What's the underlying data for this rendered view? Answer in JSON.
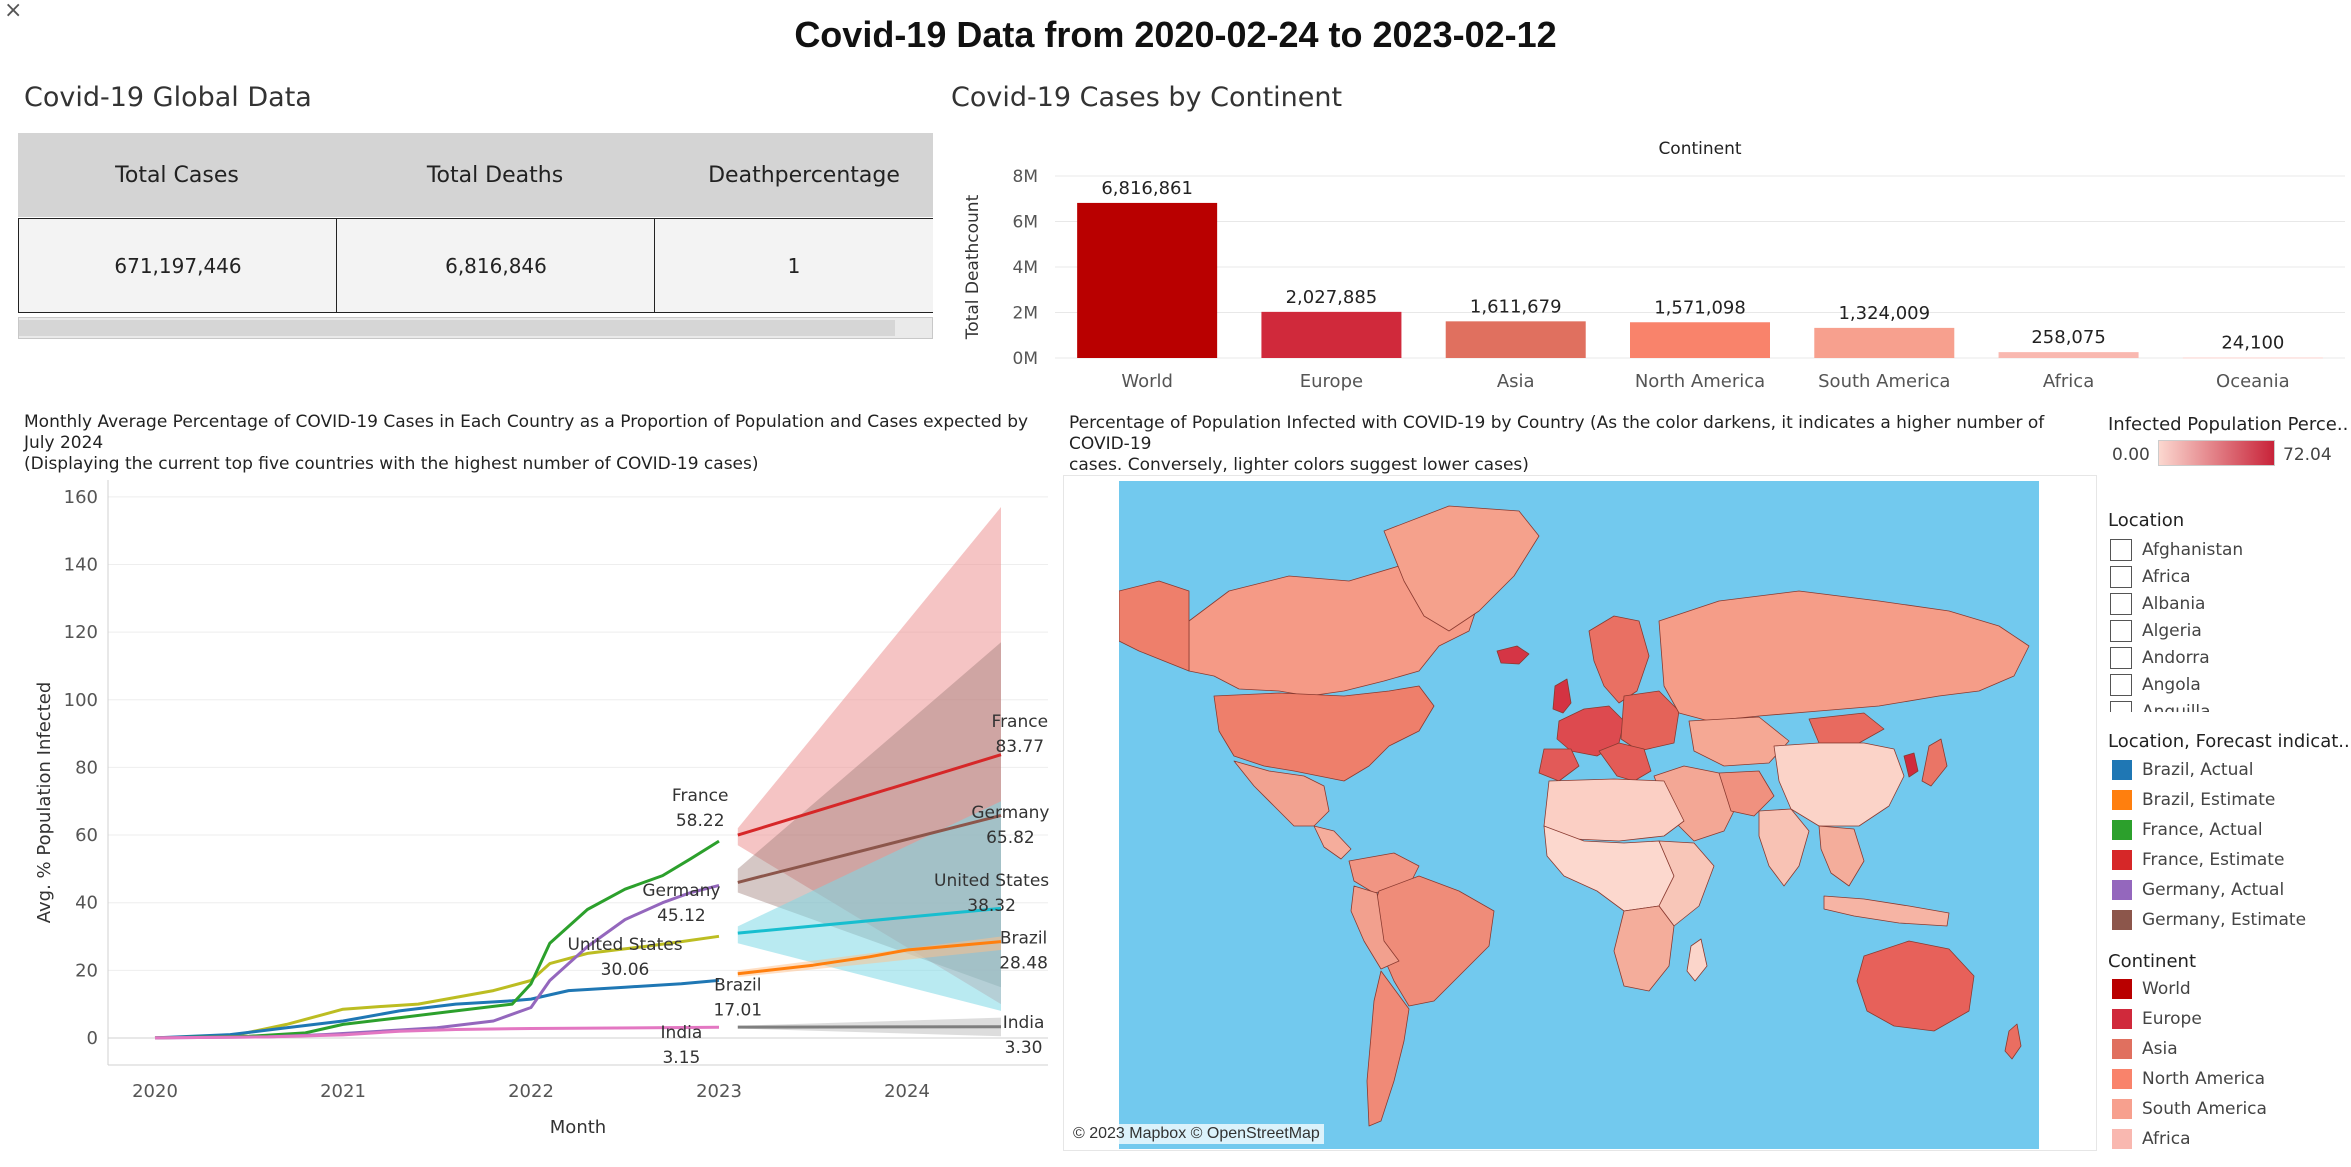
{
  "dashboard_title": "Covid-19 Data from 2020-02-24 to 2023-02-12",
  "close_glyph": "×",
  "global": {
    "title": "Covid-19 Global Data",
    "headers": [
      "Total Cases",
      "Total Deaths",
      "Deathpercentage"
    ],
    "values": [
      "671,197,446",
      "6,816,846",
      "1"
    ]
  },
  "continent_chart": {
    "section_title": "Covid-19 Cases by Continent",
    "chart_data": {
      "type": "bar",
      "title": "Continent",
      "ylabel": "Total Deathcount",
      "categories": [
        "World",
        "Europe",
        "Asia",
        "North America",
        "South America",
        "Africa",
        "Oceania"
      ],
      "values": [
        6816861,
        2027885,
        1611679,
        1571098,
        1324009,
        258075,
        24100
      ],
      "value_labels": [
        "6,816,861",
        "2,027,885",
        "1,611,679",
        "1,571,098",
        "1,324,009",
        "258,075",
        "24,100"
      ],
      "colors": [
        "#b90000",
        "#d0293b",
        "#e0705f",
        "#f9836b",
        "#f7a08e",
        "#f9b8b0",
        "#fbd3cf"
      ],
      "y_ticks": [
        0,
        2000000,
        4000000,
        6000000,
        8000000
      ],
      "y_tick_labels": [
        "0M",
        "2M",
        "4M",
        "6M",
        "8M"
      ],
      "ylim": [
        0,
        8000000
      ],
      "grid": true
    }
  },
  "line_chart": {
    "title_lines": [
      "Monthly Average Percentage of COVID-19 Cases in Each Country as a Proportion of Population and Cases expected by July 2024",
      "(Displaying the current top five countries with the highest number of COVID-19 cases)"
    ],
    "chart_data": {
      "type": "line",
      "xlabel": "Month",
      "ylabel": "Avg. % Population Infected",
      "xlim": [
        2019.75,
        2024.75
      ],
      "ylim": [
        -8,
        165
      ],
      "x_ticks": [
        2020,
        2021,
        2022,
        2023,
        2024
      ],
      "x_tick_labels": [
        "2020",
        "2021",
        "2022",
        "2023",
        "2024"
      ],
      "y_ticks": [
        0,
        20,
        40,
        60,
        80,
        100,
        120,
        140,
        160
      ],
      "grid": true,
      "series": [
        {
          "name": "United States",
          "kind": "actual",
          "color": "#bcbd22",
          "points": [
            [
              2020.0,
              0
            ],
            [
              2020.4,
              0.5
            ],
            [
              2020.7,
              4
            ],
            [
              2020.9,
              7
            ],
            [
              2021.0,
              8.5
            ],
            [
              2021.2,
              9.3
            ],
            [
              2021.4,
              10
            ],
            [
              2021.6,
              12
            ],
            [
              2021.8,
              14
            ],
            [
              2022.0,
              17
            ],
            [
              2022.1,
              22
            ],
            [
              2022.3,
              25
            ],
            [
              2022.6,
              27
            ],
            [
              2022.8,
              28.5
            ],
            [
              2023.0,
              30.06
            ]
          ]
        },
        {
          "name": "Brazil",
          "kind": "actual",
          "color": "#1f77b4",
          "points": [
            [
              2020.0,
              0
            ],
            [
              2020.4,
              1
            ],
            [
              2020.7,
              3
            ],
            [
              2021.0,
              5
            ],
            [
              2021.3,
              8
            ],
            [
              2021.6,
              10
            ],
            [
              2021.9,
              11
            ],
            [
              2022.0,
              11.5
            ],
            [
              2022.2,
              14
            ],
            [
              2022.5,
              15
            ],
            [
              2022.8,
              16
            ],
            [
              2023.0,
              17.01
            ]
          ]
        },
        {
          "name": "France",
          "kind": "actual",
          "color": "#2ca02c",
          "points": [
            [
              2020.0,
              0
            ],
            [
              2020.5,
              0.5
            ],
            [
              2020.8,
              1.5
            ],
            [
              2021.0,
              4
            ],
            [
              2021.3,
              6
            ],
            [
              2021.6,
              8
            ],
            [
              2021.9,
              10
            ],
            [
              2022.0,
              16
            ],
            [
              2022.1,
              28
            ],
            [
              2022.3,
              38
            ],
            [
              2022.5,
              44
            ],
            [
              2022.7,
              48
            ],
            [
              2022.85,
              53
            ],
            [
              2023.0,
              58.22
            ]
          ]
        },
        {
          "name": "Germany",
          "kind": "actual",
          "color": "#9467bd",
          "points": [
            [
              2020.0,
              0
            ],
            [
              2020.6,
              0.3
            ],
            [
              2020.9,
              1
            ],
            [
              2021.2,
              2
            ],
            [
              2021.5,
              3
            ],
            [
              2021.8,
              5
            ],
            [
              2022.0,
              9
            ],
            [
              2022.1,
              17
            ],
            [
              2022.3,
              27
            ],
            [
              2022.5,
              35
            ],
            [
              2022.7,
              40
            ],
            [
              2022.85,
              43
            ],
            [
              2023.0,
              45.12
            ]
          ]
        },
        {
          "name": "India",
          "kind": "actual",
          "color": "#e377c2",
          "points": [
            [
              2020.0,
              0
            ],
            [
              2020.6,
              0.3
            ],
            [
              2021.0,
              0.9
            ],
            [
              2021.3,
              2.0
            ],
            [
              2021.6,
              2.5
            ],
            [
              2022.0,
              2.8
            ],
            [
              2023.0,
              3.15
            ]
          ]
        },
        {
          "name": "France",
          "kind": "estimate",
          "color": "#d62728",
          "points": [
            [
              2023.1,
              60
            ],
            [
              2024.5,
              83.77
            ]
          ],
          "band_upper": [
            [
              2023.1,
              62
            ],
            [
              2024.5,
              157
            ]
          ],
          "band_lower": [
            [
              2023.1,
              57
            ],
            [
              2024.5,
              10
            ]
          ],
          "band_color": "#eb8a8a",
          "band_opacity": 0.5
        },
        {
          "name": "Germany",
          "kind": "estimate",
          "color": "#8c564b",
          "points": [
            [
              2023.1,
              46
            ],
            [
              2024.5,
              65.82
            ]
          ],
          "band_upper": [
            [
              2023.1,
              50
            ],
            [
              2024.5,
              117
            ]
          ],
          "band_lower": [
            [
              2023.1,
              43
            ],
            [
              2024.5,
              15
            ]
          ],
          "band_color": "#9a7a75",
          "band_opacity": 0.42
        },
        {
          "name": "United States",
          "kind": "estimate",
          "color": "#17becf",
          "points": [
            [
              2023.1,
              31
            ],
            [
              2024.5,
              38.32
            ]
          ],
          "band_upper": [
            [
              2023.1,
              33
            ],
            [
              2024.5,
              70
            ]
          ],
          "band_lower": [
            [
              2023.1,
              28
            ],
            [
              2024.5,
              8
            ]
          ],
          "band_color": "#7fd8e6",
          "band_opacity": 0.55
        },
        {
          "name": "Brazil",
          "kind": "estimate",
          "color": "#ff7f0e",
          "points": [
            [
              2023.1,
              19
            ],
            [
              2023.5,
              21.5
            ],
            [
              2023.8,
              24
            ],
            [
              2024.0,
              26
            ],
            [
              2024.5,
              28.48
            ]
          ],
          "band_upper": [
            [
              2023.1,
              20
            ],
            [
              2024.5,
              30
            ]
          ],
          "band_lower": [
            [
              2023.1,
              18
            ],
            [
              2024.5,
              26
            ]
          ],
          "band_color": "#ffc08a",
          "band_opacity": 0.5
        },
        {
          "name": "India",
          "kind": "estimate",
          "color": "#7f7f7f",
          "points": [
            [
              2023.1,
              3.2
            ],
            [
              2024.5,
              3.3
            ]
          ],
          "band_upper": [
            [
              2023.1,
              3.6
            ],
            [
              2024.5,
              6
            ]
          ],
          "band_lower": [
            [
              2023.1,
              2.8
            ],
            [
              2024.5,
              0.5
            ]
          ],
          "band_color": "#bbbbbb",
          "band_opacity": 0.5
        }
      ],
      "annotations": [
        {
          "name": "France",
          "value": "58.22",
          "x": 2022.9,
          "y": 70
        },
        {
          "name": "Germany",
          "value": "45.12",
          "x": 2022.8,
          "y": 42
        },
        {
          "name": "United States",
          "value": "30.06",
          "x": 2022.5,
          "y": 26
        },
        {
          "name": "Brazil",
          "value": "17.01",
          "x": 2023.1,
          "y": 14
        },
        {
          "name": "India",
          "value": "3.15",
          "x": 2022.8,
          "y": 0
        },
        {
          "name": "France",
          "value": "83.77",
          "x": 2024.6,
          "y": 92
        },
        {
          "name": "Germany",
          "value": "65.82",
          "x": 2024.55,
          "y": 65
        },
        {
          "name": "United States",
          "value": "38.32",
          "x": 2024.45,
          "y": 45
        },
        {
          "name": "Brazil",
          "value": "28.48",
          "x": 2024.62,
          "y": 28
        },
        {
          "name": "India",
          "value": "3.30",
          "x": 2024.62,
          "y": 3
        }
      ]
    }
  },
  "map": {
    "title_lines": [
      "Percentage of Population Infected with COVID-19 by Country (As the color darkens, it indicates a higher number of COVID-19",
      "cases. Conversely, lighter colors suggest lower cases)"
    ],
    "attribution": "© 2023 Mapbox © OpenStreetMap",
    "ocean_color": "#72c9ee",
    "color_min": "#fbd7cf",
    "color_max": "#c82339"
  },
  "legends": {
    "infected": {
      "title": "Infected Population Perce..",
      "min": "0.00",
      "max": "72.04"
    },
    "location": {
      "title": "Location",
      "items": [
        "Afghanistan",
        "Africa",
        "Albania",
        "Algeria",
        "Andorra",
        "Angola",
        "Anguilla"
      ]
    },
    "forecast": {
      "title": "Location, Forecast indicat..",
      "items": [
        {
          "label": "Brazil, Actual",
          "color": "#1f77b4"
        },
        {
          "label": "Brazil, Estimate",
          "color": "#ff7f0e"
        },
        {
          "label": "France, Actual",
          "color": "#2ca02c"
        },
        {
          "label": "France, Estimate",
          "color": "#d62728"
        },
        {
          "label": "Germany, Actual",
          "color": "#9467bd"
        },
        {
          "label": "Germany, Estimate",
          "color": "#8c564b"
        }
      ]
    },
    "continent": {
      "title": "Continent",
      "items": [
        {
          "label": "World",
          "color": "#b90000"
        },
        {
          "label": "Europe",
          "color": "#d0293b"
        },
        {
          "label": "Asia",
          "color": "#e0705f"
        },
        {
          "label": "North America",
          "color": "#f9836b"
        },
        {
          "label": "South America",
          "color": "#f7a08e"
        },
        {
          "label": "Africa",
          "color": "#f9b8b0"
        }
      ]
    }
  }
}
